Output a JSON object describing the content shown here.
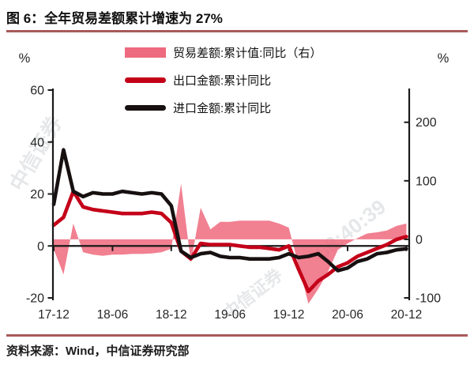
{
  "header": {
    "title": "图 6：全年贸易差额累计增速为 27%"
  },
  "footer": {
    "source": "资料来源：Wind，中信证券研究部"
  },
  "watermarks": [
    "中信证券",
    "68:40:39",
    "中信证券"
  ],
  "chart_data": {
    "type": "combo",
    "title": "全年贸易差额累计增速为 27%",
    "categories": [
      "2017-12",
      "2018-01",
      "2018-02",
      "2018-03",
      "2018-04",
      "2018-05",
      "2018-06",
      "2018-07",
      "2018-08",
      "2018-09",
      "2018-10",
      "2018-11",
      "2018-12",
      "2019-01",
      "2019-02",
      "2019-03",
      "2019-04",
      "2019-05",
      "2019-06",
      "2019-07",
      "2019-08",
      "2019-09",
      "2019-10",
      "2019-11",
      "2019-12",
      "2020-01",
      "2020-02",
      "2020-03",
      "2020-04",
      "2020-05",
      "2020-06",
      "2020-07",
      "2020-08",
      "2020-09",
      "2020-10",
      "2020-11",
      "2020-12"
    ],
    "x_tick_labels": [
      "17-12",
      "18-06",
      "18-12",
      "19-06",
      "19-12",
      "20-06",
      "20-12"
    ],
    "x_tick_indices": [
      0,
      6,
      12,
      18,
      24,
      30,
      36
    ],
    "left_axis": {
      "unit": "%",
      "min": -20,
      "max": 60,
      "ticks": [
        60,
        40,
        20,
        0,
        -20
      ]
    },
    "right_axis": {
      "unit": "%",
      "min": -100,
      "max": 255,
      "ticks": [
        200,
        100,
        0,
        -100
      ]
    },
    "legend_position": "top-center",
    "grid": false,
    "series": [
      {
        "name": "贸易差额:累计值:同比（右）",
        "type": "area",
        "axis": "right",
        "color": "#ee6a7e",
        "values": [
          -17,
          -60,
          27,
          -22,
          -26,
          -28,
          -26,
          -26,
          -25,
          -25,
          -24,
          -22,
          -16,
          95,
          -40,
          54,
          17,
          30,
          30,
          32,
          32,
          32,
          32,
          27,
          20,
          -45,
          -110,
          -85,
          -55,
          -18,
          -7,
          2,
          10,
          12,
          15,
          23,
          27
        ]
      },
      {
        "name": "出口金额:累计同比",
        "type": "line",
        "axis": "left",
        "color": "#c40019",
        "values": [
          8,
          11,
          21,
          15,
          14,
          13.5,
          13,
          12.5,
          12.5,
          12.5,
          13,
          12.5,
          9,
          -2,
          -5,
          1,
          0.5,
          0.5,
          0.5,
          0,
          -0.5,
          -0.5,
          -1,
          -1.5,
          0,
          -9,
          -17.5,
          -13.5,
          -11,
          -8,
          -6.5,
          -4,
          -2.5,
          -1,
          0.5,
          2.5,
          3.6
        ]
      },
      {
        "name": "进口金额:累计同比",
        "type": "line",
        "axis": "left",
        "color": "#171011",
        "values": [
          16,
          37,
          21,
          19,
          20.5,
          20,
          20,
          21,
          20.5,
          20,
          20.5,
          20,
          15.5,
          -2,
          -4.5,
          -3,
          -2.5,
          -4,
          -4.5,
          -4.5,
          -5,
          -5,
          -5,
          -4.5,
          -3,
          -4.5,
          -4,
          -3,
          -6,
          -9.5,
          -8.5,
          -6,
          -5,
          -3,
          -2.5,
          -1.5,
          -1.1
        ]
      }
    ]
  }
}
